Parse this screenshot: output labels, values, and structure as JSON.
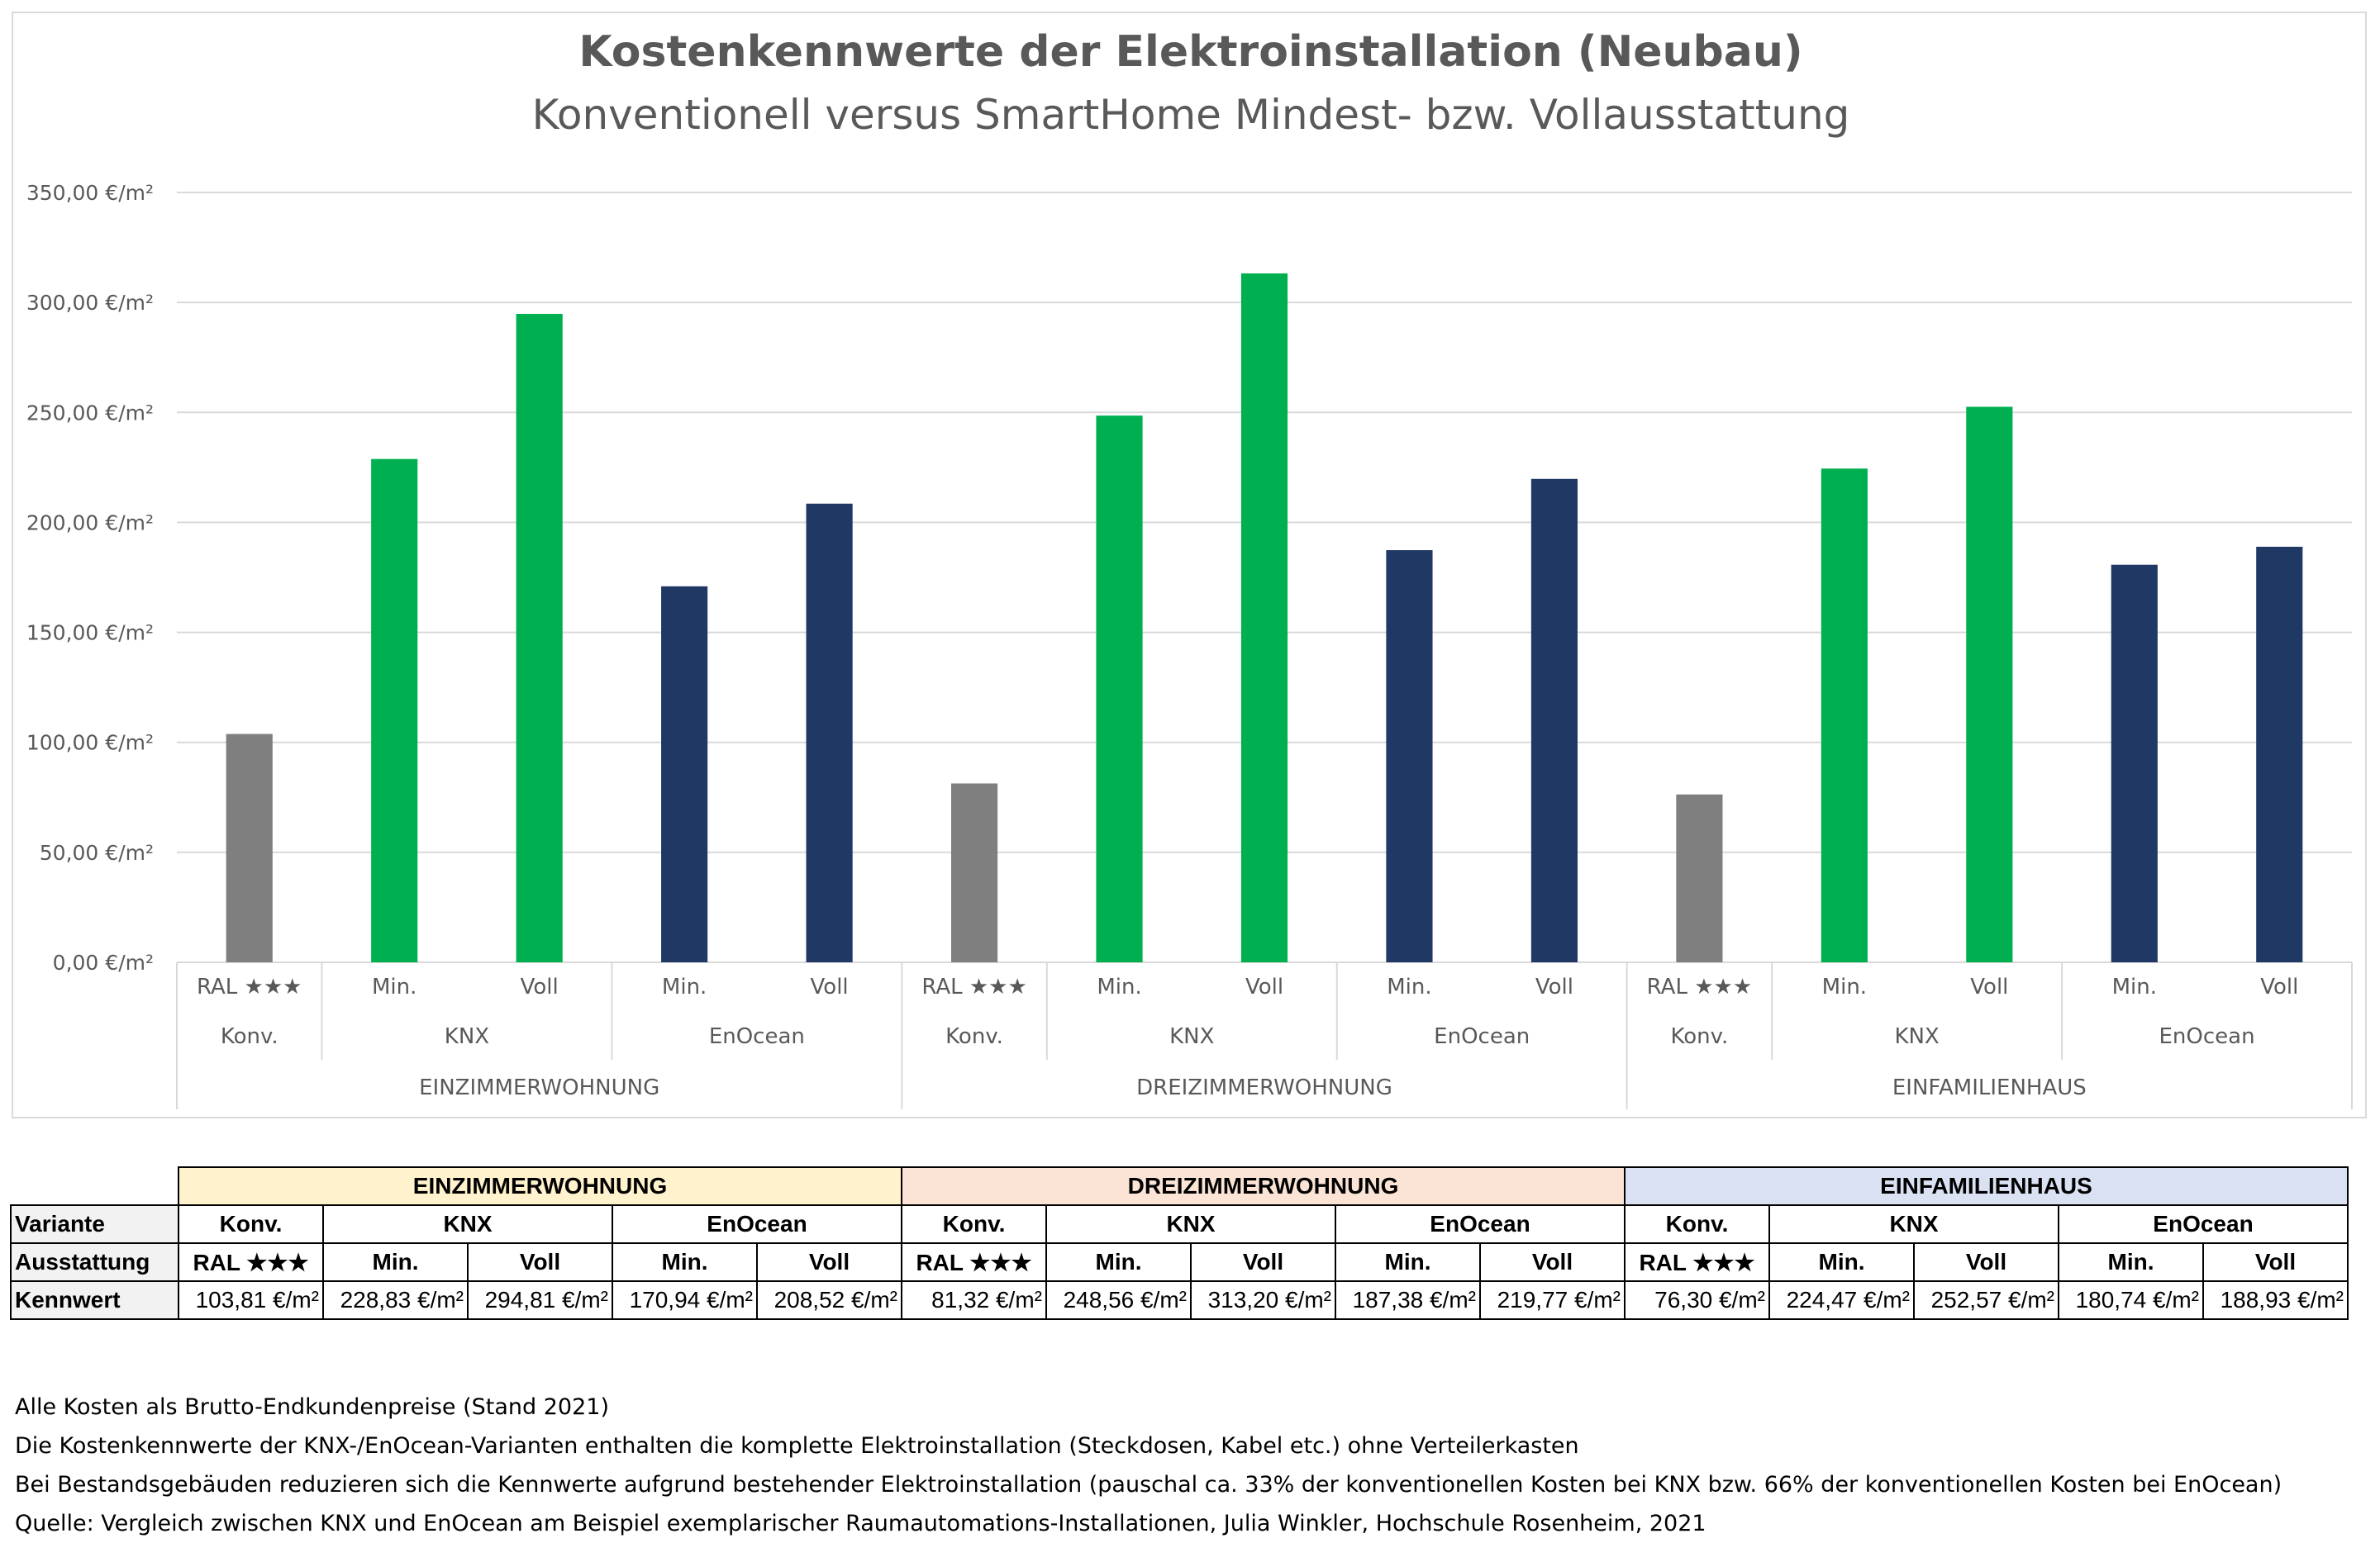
{
  "colors": {
    "konv": "#7f7f7f",
    "knx": "#00b050",
    "enocean": "#1f3864",
    "grid": "#d9d9d9",
    "axis_text": "#595959",
    "title": "#595959",
    "hdr_einzimmer": "#fff2cc",
    "hdr_dreizimmer": "#fbe4d5",
    "hdr_einfamilien": "#d9e1f2"
  },
  "chart_data": {
    "type": "bar",
    "title": "Kostenkennwerte der Elektroinstallation (Neubau)",
    "subtitle": "Konventionell versus SmartHome Mindest- bzw. Vollausstattung",
    "ylim": [
      0,
      350
    ],
    "ytick_values": [
      0,
      50,
      100,
      150,
      200,
      250,
      300,
      350
    ],
    "ytick_labels": [
      "0,00 €/m²",
      "50,00 €/m²",
      "100,00 €/m²",
      "150,00 €/m²",
      "200,00 €/m²",
      "250,00 €/m²",
      "300,00 €/m²",
      "350,00 €/m²"
    ],
    "gridlines": true,
    "groups": [
      {
        "label": "EINZIMMERWOHNUNG",
        "subgroups": [
          {
            "label": "Konv.",
            "bars": [
              {
                "label": "RAL ★★★",
                "value": 103.81,
                "kind": "konv"
              }
            ]
          },
          {
            "label": "KNX",
            "bars": [
              {
                "label": "Min.",
                "value": 228.83,
                "kind": "knx"
              },
              {
                "label": "Voll",
                "value": 294.81,
                "kind": "knx"
              }
            ]
          },
          {
            "label": "EnOcean",
            "bars": [
              {
                "label": "Min.",
                "value": 170.94,
                "kind": "enocean"
              },
              {
                "label": "Voll",
                "value": 208.52,
                "kind": "enocean"
              }
            ]
          }
        ]
      },
      {
        "label": "DREIZIMMERWOHNUNG",
        "subgroups": [
          {
            "label": "Konv.",
            "bars": [
              {
                "label": "RAL ★★★",
                "value": 81.32,
                "kind": "konv"
              }
            ]
          },
          {
            "label": "KNX",
            "bars": [
              {
                "label": "Min.",
                "value": 248.56,
                "kind": "knx"
              },
              {
                "label": "Voll",
                "value": 313.2,
                "kind": "knx"
              }
            ]
          },
          {
            "label": "EnOcean",
            "bars": [
              {
                "label": "Min.",
                "value": 187.38,
                "kind": "enocean"
              },
              {
                "label": "Voll",
                "value": 219.77,
                "kind": "enocean"
              }
            ]
          }
        ]
      },
      {
        "label": "EINFAMILIENHAUS",
        "subgroups": [
          {
            "label": "Konv.",
            "bars": [
              {
                "label": "RAL ★★★",
                "value": 76.3,
                "kind": "konv"
              }
            ]
          },
          {
            "label": "KNX",
            "bars": [
              {
                "label": "Min.",
                "value": 224.47,
                "kind": "knx"
              },
              {
                "label": "Voll",
                "value": 252.57,
                "kind": "knx"
              }
            ]
          },
          {
            "label": "EnOcean",
            "bars": [
              {
                "label": "Min.",
                "value": 180.74,
                "kind": "enocean"
              },
              {
                "label": "Voll",
                "value": 188.93,
                "kind": "enocean"
              }
            ]
          }
        ]
      }
    ]
  },
  "table": {
    "group_headers": [
      "EINZIMMERWOHNUNG",
      "DREIZIMMERWOHNUNG",
      "EINFAMILIENHAUS"
    ],
    "row_labels": {
      "variante": "Variante",
      "ausstattung": "Ausstattung",
      "kennwert": "Kennwert"
    },
    "variante": [
      "Konv.",
      "KNX",
      "EnOcean",
      "Konv.",
      "KNX",
      "EnOcean",
      "Konv.",
      "KNX",
      "EnOcean"
    ],
    "ausstattung": [
      "RAL ★★★",
      "Min.",
      "Voll",
      "Min.",
      "Voll",
      "RAL ★★★",
      "Min.",
      "Voll",
      "Min.",
      "Voll",
      "RAL ★★★",
      "Min.",
      "Voll",
      "Min.",
      "Voll"
    ],
    "kennwert": [
      "103,81 €/m²",
      "228,83 €/m²",
      "294,81 €/m²",
      "170,94 €/m²",
      "208,52 €/m²",
      "81,32 €/m²",
      "248,56 €/m²",
      "313,20 €/m²",
      "187,38 €/m²",
      "219,77 €/m²",
      "76,30 €/m²",
      "224,47 €/m²",
      "252,57 €/m²",
      "180,74 €/m²",
      "188,93 €/m²"
    ]
  },
  "notes": [
    "Alle Kosten als Brutto-Endkundenpreise (Stand 2021)",
    "Die Kostenkennwerte der KNX-/EnOcean-Varianten enthalten die komplette Elektroinstallation (Steckdosen, Kabel etc.) ohne Verteilerkasten",
    "Bei Bestandsgebäuden reduzieren sich die Kennwerte aufgrund bestehender Elektroinstallation (pauschal ca. 33% der konventionellen Kosten bei KNX bzw. 66% der konventionellen Kosten bei EnOcean)",
    "Quelle: Vergleich zwischen KNX und EnOcean am Beispiel exemplarischer Raumautomations-Installationen, Julia Winkler, Hochschule Rosenheim, 2021"
  ]
}
